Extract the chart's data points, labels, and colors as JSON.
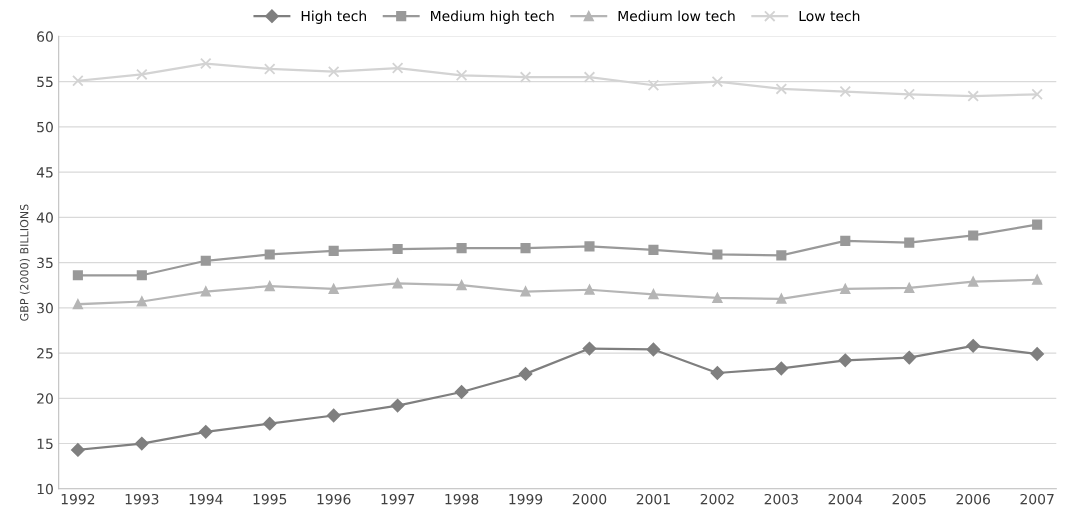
{
  "chart_data": {
    "type": "line",
    "ylabel": "GBP (2000) BILLIONS",
    "categories": [
      "1992",
      "1993",
      "1994",
      "1995",
      "1996",
      "1997",
      "1998",
      "1999",
      "2000",
      "2001",
      "2002",
      "2003",
      "2004",
      "2005",
      "2006",
      "2007"
    ],
    "series": [
      {
        "name": "High tech",
        "color": "#7f7f7f",
        "marker": "diamond",
        "values": [
          14.3,
          15.0,
          16.3,
          17.2,
          18.1,
          19.2,
          20.7,
          22.7,
          25.5,
          25.4,
          22.8,
          23.3,
          24.2,
          24.5,
          25.8,
          24.9
        ]
      },
      {
        "name": "Medium high tech",
        "color": "#999999",
        "marker": "square",
        "values": [
          33.6,
          33.6,
          35.2,
          35.9,
          36.3,
          36.5,
          36.6,
          36.6,
          36.8,
          36.4,
          35.9,
          35.8,
          37.4,
          37.2,
          38.0,
          39.2
        ]
      },
      {
        "name": "Medium low tech",
        "color": "#b5b5b5",
        "marker": "triangle",
        "values": [
          30.4,
          30.7,
          31.8,
          32.4,
          32.1,
          32.7,
          32.5,
          31.8,
          32.0,
          31.5,
          31.1,
          31.0,
          32.1,
          32.2,
          32.9,
          33.1
        ]
      },
      {
        "name": "Low tech",
        "color": "#d3d3d3",
        "marker": "cross",
        "values": [
          55.1,
          55.8,
          57.0,
          56.4,
          56.1,
          56.5,
          55.7,
          55.5,
          55.5,
          54.6,
          55.0,
          54.2,
          53.9,
          53.6,
          53.4,
          53.6
        ]
      }
    ],
    "ylim": [
      10,
      60
    ],
    "yticks": [
      10,
      15,
      20,
      25,
      30,
      35,
      40,
      45,
      50,
      55,
      60
    ],
    "grid": "y",
    "legend": "top",
    "line_style": "solid"
  }
}
